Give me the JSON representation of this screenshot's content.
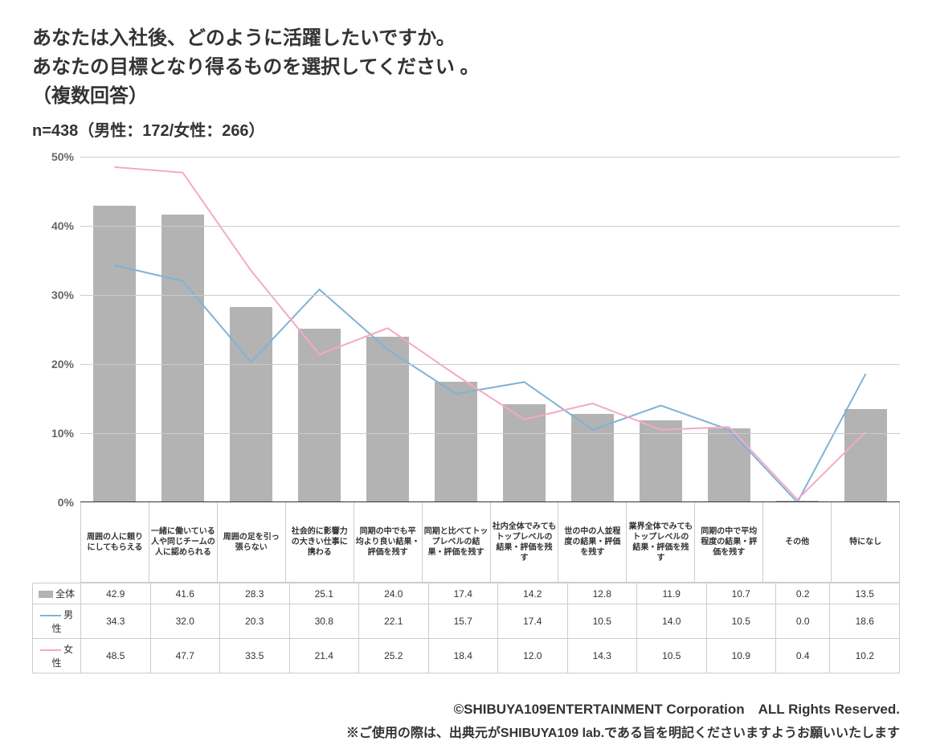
{
  "title_line1": "あなたは入社後、どのように活躍したいですか。",
  "title_line2": "あなたの目標となり得るものを選択してください 。",
  "title_line3": "（複数回答）",
  "subtitle": "n=438（男性：172/女性：266）",
  "chart": {
    "type": "bar-with-lines",
    "ylim": [
      0,
      50
    ],
    "ytick_step": 10,
    "y_suffix": "%",
    "bar_color": "#b3b3b3",
    "male_line_color": "#7fb3d5",
    "female_line_color": "#f5a9c4",
    "line_width": 2,
    "grid_color": "#cccccc",
    "axis_color": "#333333",
    "background_color": "#ffffff",
    "categories": [
      "周囲の人に頼りにしてもらえる",
      "一緒に働いている人や同じチームの人に認められる",
      "周囲の足を引っ張らない",
      "社会的に影響力の大きい仕事に携わる",
      "同期の中でも平均より良い結果・評価を残す",
      "同期と比べてトップレベルの結果・評価を残す",
      "社内全体でみてもトップレベルの結果・評価を残す",
      "世の中の人並程度の結果・評価を残す",
      "業界全体でみてもトップレベルの結果・評価を残す",
      "同期の中で平均程度の結果・評価を残す",
      "その他",
      "特になし"
    ],
    "series": {
      "total": {
        "label": "全体",
        "values": [
          42.9,
          41.6,
          28.3,
          25.1,
          24.0,
          17.4,
          14.2,
          12.8,
          11.9,
          10.7,
          0.2,
          13.5
        ]
      },
      "male": {
        "label": "男性",
        "values": [
          34.3,
          32.0,
          20.3,
          30.8,
          22.1,
          15.7,
          17.4,
          10.5,
          14.0,
          10.5,
          0.0,
          18.6
        ]
      },
      "female": {
        "label": "女性",
        "values": [
          48.5,
          47.7,
          33.5,
          21.4,
          25.2,
          18.4,
          12.0,
          14.3,
          10.5,
          10.9,
          0.4,
          10.2
        ]
      }
    }
  },
  "credit_line1": "©SHIBUYA109ENTERTAINMENT Corporation　ALL Rights Reserved.",
  "credit_line2": "※ご使用の際は、出典元がSHIBUYA109 lab.である旨を明記くださいますようお願いいたします"
}
